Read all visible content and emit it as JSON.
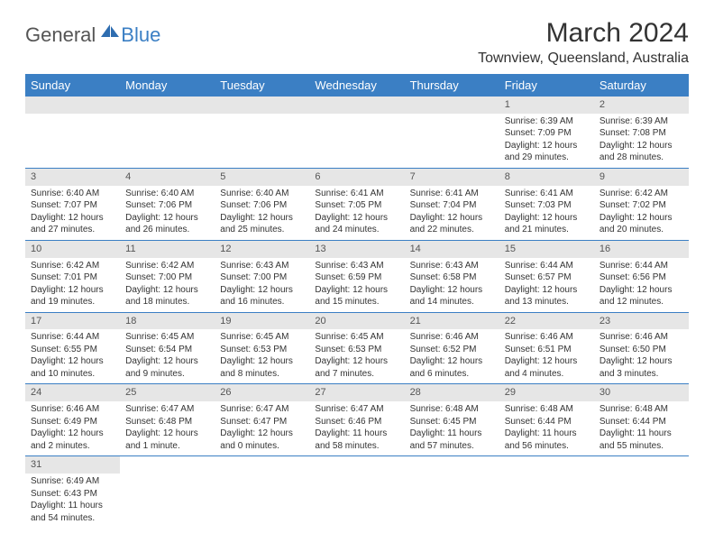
{
  "logo": {
    "general": "General",
    "blue": "Blue"
  },
  "title": "March 2024",
  "location": "Townview, Queensland, Australia",
  "colors": {
    "header_bg": "#3b7fc4",
    "header_text": "#ffffff",
    "daynum_bg": "#e6e6e6",
    "row_border": "#3b7fc4",
    "text": "#333333"
  },
  "weekdays": [
    "Sunday",
    "Monday",
    "Tuesday",
    "Wednesday",
    "Thursday",
    "Friday",
    "Saturday"
  ],
  "weeks": [
    [
      null,
      null,
      null,
      null,
      null,
      {
        "n": "1",
        "sr": "Sunrise: 6:39 AM",
        "ss": "Sunset: 7:09 PM",
        "d1": "Daylight: 12 hours",
        "d2": "and 29 minutes."
      },
      {
        "n": "2",
        "sr": "Sunrise: 6:39 AM",
        "ss": "Sunset: 7:08 PM",
        "d1": "Daylight: 12 hours",
        "d2": "and 28 minutes."
      }
    ],
    [
      {
        "n": "3",
        "sr": "Sunrise: 6:40 AM",
        "ss": "Sunset: 7:07 PM",
        "d1": "Daylight: 12 hours",
        "d2": "and 27 minutes."
      },
      {
        "n": "4",
        "sr": "Sunrise: 6:40 AM",
        "ss": "Sunset: 7:06 PM",
        "d1": "Daylight: 12 hours",
        "d2": "and 26 minutes."
      },
      {
        "n": "5",
        "sr": "Sunrise: 6:40 AM",
        "ss": "Sunset: 7:06 PM",
        "d1": "Daylight: 12 hours",
        "d2": "and 25 minutes."
      },
      {
        "n": "6",
        "sr": "Sunrise: 6:41 AM",
        "ss": "Sunset: 7:05 PM",
        "d1": "Daylight: 12 hours",
        "d2": "and 24 minutes."
      },
      {
        "n": "7",
        "sr": "Sunrise: 6:41 AM",
        "ss": "Sunset: 7:04 PM",
        "d1": "Daylight: 12 hours",
        "d2": "and 22 minutes."
      },
      {
        "n": "8",
        "sr": "Sunrise: 6:41 AM",
        "ss": "Sunset: 7:03 PM",
        "d1": "Daylight: 12 hours",
        "d2": "and 21 minutes."
      },
      {
        "n": "9",
        "sr": "Sunrise: 6:42 AM",
        "ss": "Sunset: 7:02 PM",
        "d1": "Daylight: 12 hours",
        "d2": "and 20 minutes."
      }
    ],
    [
      {
        "n": "10",
        "sr": "Sunrise: 6:42 AM",
        "ss": "Sunset: 7:01 PM",
        "d1": "Daylight: 12 hours",
        "d2": "and 19 minutes."
      },
      {
        "n": "11",
        "sr": "Sunrise: 6:42 AM",
        "ss": "Sunset: 7:00 PM",
        "d1": "Daylight: 12 hours",
        "d2": "and 18 minutes."
      },
      {
        "n": "12",
        "sr": "Sunrise: 6:43 AM",
        "ss": "Sunset: 7:00 PM",
        "d1": "Daylight: 12 hours",
        "d2": "and 16 minutes."
      },
      {
        "n": "13",
        "sr": "Sunrise: 6:43 AM",
        "ss": "Sunset: 6:59 PM",
        "d1": "Daylight: 12 hours",
        "d2": "and 15 minutes."
      },
      {
        "n": "14",
        "sr": "Sunrise: 6:43 AM",
        "ss": "Sunset: 6:58 PM",
        "d1": "Daylight: 12 hours",
        "d2": "and 14 minutes."
      },
      {
        "n": "15",
        "sr": "Sunrise: 6:44 AM",
        "ss": "Sunset: 6:57 PM",
        "d1": "Daylight: 12 hours",
        "d2": "and 13 minutes."
      },
      {
        "n": "16",
        "sr": "Sunrise: 6:44 AM",
        "ss": "Sunset: 6:56 PM",
        "d1": "Daylight: 12 hours",
        "d2": "and 12 minutes."
      }
    ],
    [
      {
        "n": "17",
        "sr": "Sunrise: 6:44 AM",
        "ss": "Sunset: 6:55 PM",
        "d1": "Daylight: 12 hours",
        "d2": "and 10 minutes."
      },
      {
        "n": "18",
        "sr": "Sunrise: 6:45 AM",
        "ss": "Sunset: 6:54 PM",
        "d1": "Daylight: 12 hours",
        "d2": "and 9 minutes."
      },
      {
        "n": "19",
        "sr": "Sunrise: 6:45 AM",
        "ss": "Sunset: 6:53 PM",
        "d1": "Daylight: 12 hours",
        "d2": "and 8 minutes."
      },
      {
        "n": "20",
        "sr": "Sunrise: 6:45 AM",
        "ss": "Sunset: 6:53 PM",
        "d1": "Daylight: 12 hours",
        "d2": "and 7 minutes."
      },
      {
        "n": "21",
        "sr": "Sunrise: 6:46 AM",
        "ss": "Sunset: 6:52 PM",
        "d1": "Daylight: 12 hours",
        "d2": "and 6 minutes."
      },
      {
        "n": "22",
        "sr": "Sunrise: 6:46 AM",
        "ss": "Sunset: 6:51 PM",
        "d1": "Daylight: 12 hours",
        "d2": "and 4 minutes."
      },
      {
        "n": "23",
        "sr": "Sunrise: 6:46 AM",
        "ss": "Sunset: 6:50 PM",
        "d1": "Daylight: 12 hours",
        "d2": "and 3 minutes."
      }
    ],
    [
      {
        "n": "24",
        "sr": "Sunrise: 6:46 AM",
        "ss": "Sunset: 6:49 PM",
        "d1": "Daylight: 12 hours",
        "d2": "and 2 minutes."
      },
      {
        "n": "25",
        "sr": "Sunrise: 6:47 AM",
        "ss": "Sunset: 6:48 PM",
        "d1": "Daylight: 12 hours",
        "d2": "and 1 minute."
      },
      {
        "n": "26",
        "sr": "Sunrise: 6:47 AM",
        "ss": "Sunset: 6:47 PM",
        "d1": "Daylight: 12 hours",
        "d2": "and 0 minutes."
      },
      {
        "n": "27",
        "sr": "Sunrise: 6:47 AM",
        "ss": "Sunset: 6:46 PM",
        "d1": "Daylight: 11 hours",
        "d2": "and 58 minutes."
      },
      {
        "n": "28",
        "sr": "Sunrise: 6:48 AM",
        "ss": "Sunset: 6:45 PM",
        "d1": "Daylight: 11 hours",
        "d2": "and 57 minutes."
      },
      {
        "n": "29",
        "sr": "Sunrise: 6:48 AM",
        "ss": "Sunset: 6:44 PM",
        "d1": "Daylight: 11 hours",
        "d2": "and 56 minutes."
      },
      {
        "n": "30",
        "sr": "Sunrise: 6:48 AM",
        "ss": "Sunset: 6:44 PM",
        "d1": "Daylight: 11 hours",
        "d2": "and 55 minutes."
      }
    ],
    [
      {
        "n": "31",
        "sr": "Sunrise: 6:49 AM",
        "ss": "Sunset: 6:43 PM",
        "d1": "Daylight: 11 hours",
        "d2": "and 54 minutes."
      },
      null,
      null,
      null,
      null,
      null,
      null
    ]
  ]
}
